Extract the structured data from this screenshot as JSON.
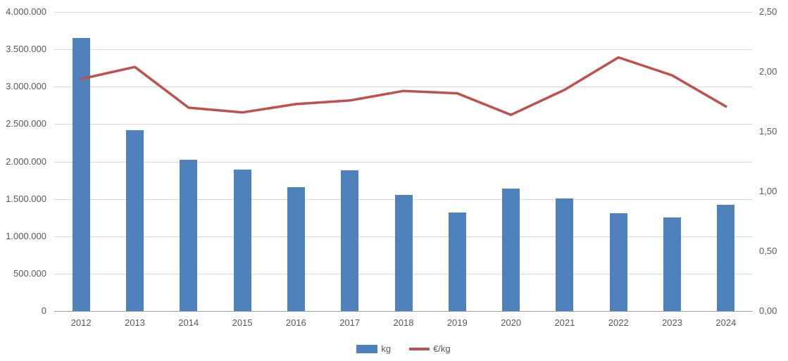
{
  "chart_data": {
    "type": "bar",
    "subtype": "combo-bar-line",
    "title": "",
    "categories": [
      "2012",
      "2013",
      "2014",
      "2015",
      "2016",
      "2017",
      "2018",
      "2019",
      "2020",
      "2021",
      "2022",
      "2023",
      "2024"
    ],
    "series": [
      {
        "name": "kg",
        "type": "bar",
        "axis": "left",
        "color": "#4F81BD",
        "values": [
          3650000,
          2420000,
          2025000,
          1895000,
          1655000,
          1885000,
          1555000,
          1320000,
          1640000,
          1505000,
          1310000,
          1255000,
          1420000
        ]
      },
      {
        "name": "€/kg",
        "type": "line",
        "axis": "right",
        "color": "#C0504D",
        "values": [
          1.94,
          2.04,
          1.7,
          1.66,
          1.73,
          1.76,
          1.84,
          1.82,
          1.64,
          1.85,
          2.12,
          1.97,
          1.71
        ]
      }
    ],
    "left_axis": {
      "min": 0,
      "max": 4000000,
      "step": 500000,
      "tick_labels": [
        "0",
        "500.000",
        "1.000.000",
        "1.500.000",
        "2.000.000",
        "2.500.000",
        "3.000.000",
        "3.500.000",
        "4.000.000"
      ]
    },
    "right_axis": {
      "min": 0,
      "max": 2.5,
      "step": 0.5,
      "tick_labels": [
        "0,00",
        "0,50",
        "1,00",
        "1,50",
        "2,00",
        "2,50"
      ]
    },
    "grid": true,
    "legend_position": "bottom",
    "colors": {
      "gridline": "#d9d9d9",
      "axis_line": "#9e9e9e",
      "tick_text": "#595959"
    }
  }
}
